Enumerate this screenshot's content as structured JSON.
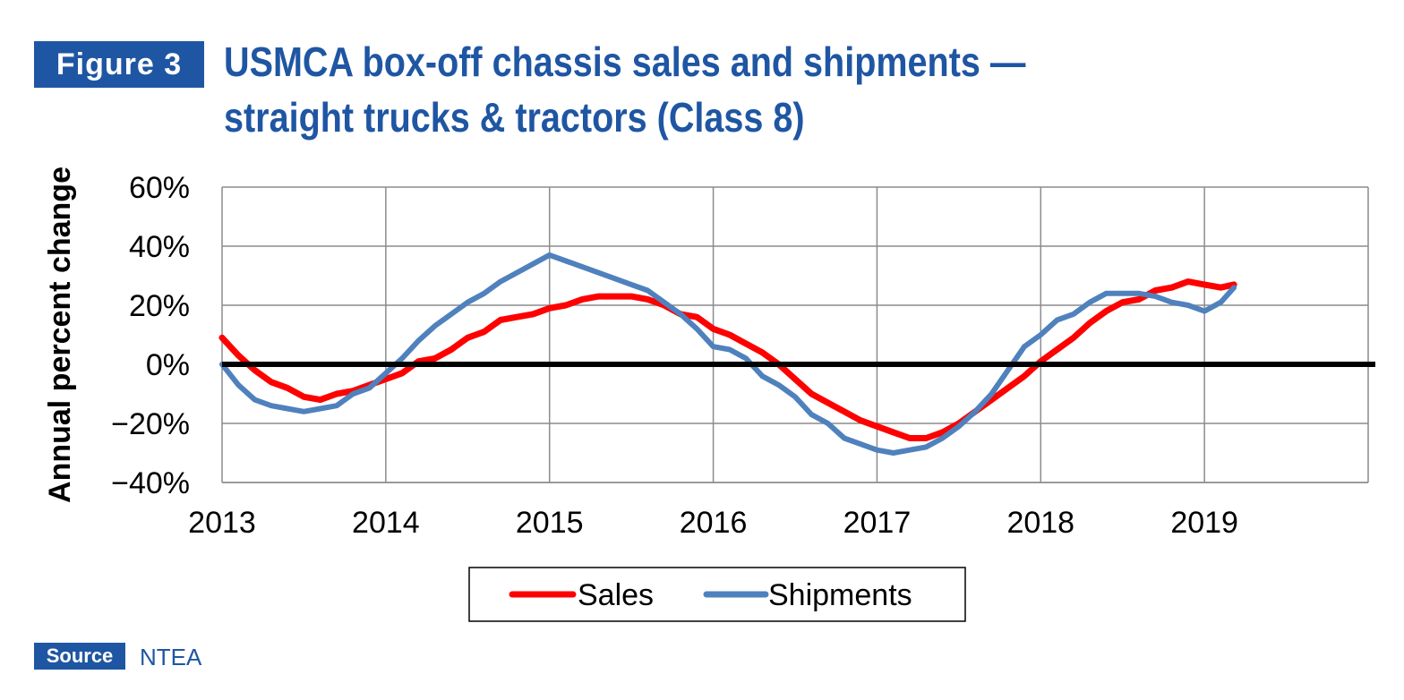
{
  "header": {
    "badge": "Figure 3",
    "title_line1": "USMCA box-off chassis sales and shipments —",
    "title_line2": "straight trucks & tractors (Class 8)"
  },
  "footer": {
    "source_badge": "Source",
    "source_text": "NTEA"
  },
  "colors": {
    "brand": "#1f56a3",
    "sales": "#ff0000",
    "shipments": "#4f81bd",
    "zero_line": "#000000",
    "grid": "#8c8c8c"
  },
  "chart_data": {
    "type": "line",
    "title": "USMCA box-off chassis sales and shipments — straight trucks & tractors (Class 8)",
    "xlabel": "",
    "ylabel": "Annual percent change",
    "xlim": [
      2013,
      2020
    ],
    "ylim": [
      -40,
      60
    ],
    "x_ticks": [
      2013,
      2014,
      2015,
      2016,
      2017,
      2018,
      2019
    ],
    "x_tick_labels": [
      "2013",
      "2014",
      "2015",
      "2016",
      "2017",
      "2018",
      "2019"
    ],
    "y_ticks": [
      -40,
      -20,
      0,
      20,
      40,
      60
    ],
    "y_tick_labels": [
      "−40%",
      "−20%",
      "0%",
      "20%",
      "40%",
      "60%"
    ],
    "grid": true,
    "legend": "bottom-center",
    "series": [
      {
        "name": "Sales",
        "color": "#ff0000",
        "x": [
          2013.0,
          2013.1,
          2013.2,
          2013.3,
          2013.4,
          2013.5,
          2013.6,
          2013.7,
          2013.8,
          2013.9,
          2014.0,
          2014.1,
          2014.2,
          2014.3,
          2014.4,
          2014.5,
          2014.6,
          2014.7,
          2014.8,
          2014.9,
          2015.0,
          2015.1,
          2015.2,
          2015.3,
          2015.4,
          2015.5,
          2015.6,
          2015.7,
          2015.8,
          2015.9,
          2016.0,
          2016.1,
          2016.2,
          2016.3,
          2016.4,
          2016.5,
          2016.6,
          2016.7,
          2016.8,
          2016.9,
          2017.0,
          2017.1,
          2017.2,
          2017.3,
          2017.4,
          2017.5,
          2017.6,
          2017.7,
          2017.8,
          2017.9,
          2018.0,
          2018.1,
          2018.2,
          2018.3,
          2018.4,
          2018.5,
          2018.6,
          2018.7,
          2018.8,
          2018.9,
          2019.0,
          2019.1,
          2019.18
        ],
        "values": [
          9,
          3,
          -2,
          -6,
          -8,
          -11,
          -12,
          -10,
          -9,
          -7,
          -5,
          -3,
          1,
          2,
          5,
          9,
          11,
          15,
          16,
          17,
          19,
          20,
          22,
          23,
          23,
          23,
          22,
          20,
          17,
          16,
          12,
          10,
          7,
          4,
          0,
          -5,
          -10,
          -13,
          -16,
          -19,
          -21,
          -23,
          -25,
          -25,
          -23,
          -20,
          -16,
          -12,
          -8,
          -4,
          1,
          5,
          9,
          14,
          18,
          21,
          22,
          25,
          26,
          28,
          27,
          26,
          27
        ]
      },
      {
        "name": "Shipments",
        "color": "#4f81bd",
        "x": [
          2013.0,
          2013.1,
          2013.2,
          2013.3,
          2013.4,
          2013.5,
          2013.6,
          2013.7,
          2013.8,
          2013.9,
          2014.0,
          2014.1,
          2014.2,
          2014.3,
          2014.4,
          2014.5,
          2014.6,
          2014.7,
          2014.8,
          2014.9,
          2015.0,
          2015.1,
          2015.2,
          2015.3,
          2015.4,
          2015.5,
          2015.6,
          2015.7,
          2015.8,
          2015.9,
          2016.0,
          2016.1,
          2016.2,
          2016.3,
          2016.4,
          2016.5,
          2016.6,
          2016.7,
          2016.8,
          2016.9,
          2017.0,
          2017.1,
          2017.2,
          2017.3,
          2017.4,
          2017.5,
          2017.6,
          2017.7,
          2017.8,
          2017.9,
          2018.0,
          2018.1,
          2018.2,
          2018.3,
          2018.4,
          2018.5,
          2018.6,
          2018.7,
          2018.8,
          2018.9,
          2019.0,
          2019.1,
          2019.18
        ],
        "values": [
          0,
          -7,
          -12,
          -14,
          -15,
          -16,
          -15,
          -14,
          -10,
          -8,
          -3,
          2,
          8,
          13,
          17,
          21,
          24,
          28,
          31,
          34,
          37,
          35,
          33,
          31,
          29,
          27,
          25,
          21,
          17,
          12,
          6,
          5,
          2,
          -4,
          -7,
          -11,
          -17,
          -20,
          -25,
          -27,
          -29,
          -30,
          -29,
          -28,
          -25,
          -21,
          -16,
          -10,
          -2,
          6,
          10,
          15,
          17,
          21,
          24,
          24,
          24,
          23,
          21,
          20,
          18,
          21,
          26
        ]
      }
    ]
  }
}
